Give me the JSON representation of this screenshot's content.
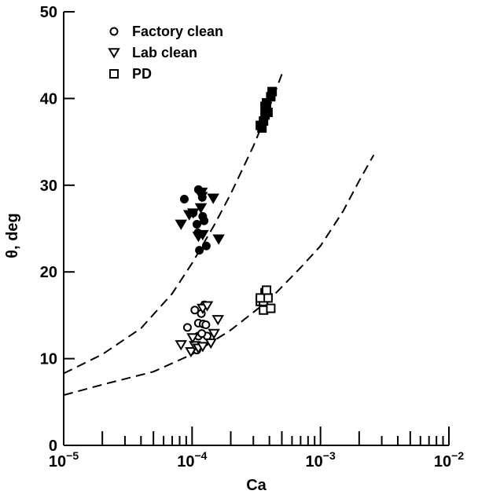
{
  "chart_data": {
    "type": "scatter",
    "xlabel": "Ca",
    "ylabel": "θ, deg",
    "xscale": "log",
    "xlim": [
      1e-05,
      0.01
    ],
    "ylim": [
      0,
      50
    ],
    "x_tick_labels": [
      {
        "base": "10",
        "exp": "−5",
        "value": 1e-05
      },
      {
        "base": "10",
        "exp": "−4",
        "value": 0.0001
      },
      {
        "base": "10",
        "exp": "−3",
        "value": 0.001
      },
      {
        "base": "10",
        "exp": "−2",
        "value": 0.01
      }
    ],
    "y_ticks": [
      0,
      10,
      20,
      30,
      40,
      50
    ],
    "legend_position": "top-left",
    "series": [
      {
        "name": "Factory clean",
        "marker": "open-circle",
        "filled_marker": "filled-circle",
        "points": [
          [
            9.2e-05,
            13.6
          ],
          [
            0.000105,
            15.6
          ],
          [
            0.000112,
            14.1
          ],
          [
            0.000118,
            15.2
          ],
          [
            0.000125,
            16.2
          ],
          [
            0.000122,
            14.0
          ],
          [
            0.000112,
            12.6
          ],
          [
            0.000128,
            13.9
          ],
          [
            0.000109,
            11.0
          ],
          [
            0.000131,
            12.6
          ],
          [
            0.000119,
            12.9
          ]
        ],
        "filled_points": [
          [
            8.7e-05,
            28.4
          ],
          [
            0.000112,
            29.5
          ],
          [
            0.000102,
            26.8
          ],
          [
            0.000121,
            26.4
          ],
          [
            0.000109,
            25.5
          ],
          [
            0.000124,
            25.9
          ],
          [
            0.000111,
            24.5
          ],
          [
            0.000129,
            23.0
          ],
          [
            0.000114,
            22.5
          ],
          [
            0.00012,
            28.6
          ]
        ]
      },
      {
        "name": "Lab clean",
        "marker": "open-triangle-down",
        "filled_marker": "filled-triangle-down",
        "points": [
          [
            8.2e-05,
            11.6
          ],
          [
            9.8e-05,
            10.8
          ],
          [
            0.000105,
            11.5
          ],
          [
            0.000112,
            11.2
          ],
          [
            0.000121,
            11.4
          ],
          [
            0.00014,
            11.8
          ],
          [
            0.000148,
            12.9
          ],
          [
            0.000159,
            14.5
          ],
          [
            0.000121,
            15.8
          ],
          [
            0.000131,
            16.1
          ],
          [
            0.000101,
            12.4
          ]
        ],
        "filled_points": [
          [
            8.2e-05,
            25.5
          ],
          [
            9.5e-05,
            26.6
          ],
          [
            0.000102,
            26.8
          ],
          [
            0.000117,
            27.4
          ],
          [
            0.000119,
            29.2
          ],
          [
            0.000146,
            28.5
          ],
          [
            0.000112,
            24.1
          ],
          [
            0.000121,
            24.3
          ],
          [
            0.000161,
            23.8
          ],
          [
            0.000119,
            28.7
          ]
        ]
      },
      {
        "name": "PD",
        "marker": "open-square",
        "filled_marker": "filled-square",
        "points": [
          [
            0.00034,
            16.6
          ],
          [
            0.00037,
            17.6
          ],
          [
            0.00036,
            16.6
          ],
          [
            0.00039,
            17.0
          ],
          [
            0.00036,
            15.6
          ],
          [
            0.00041,
            15.8
          ],
          [
            0.00034,
            17.0
          ],
          [
            0.00038,
            17.9
          ]
        ],
        "filled_points": [
          [
            0.00034,
            36.9
          ],
          [
            0.00036,
            37.4
          ],
          [
            0.00037,
            38.1
          ],
          [
            0.00039,
            38.4
          ],
          [
            0.00037,
            39.1
          ],
          [
            0.00041,
            40.2
          ],
          [
            0.00042,
            40.8
          ],
          [
            0.00035,
            36.6
          ],
          [
            0.00038,
            39.5
          ]
        ]
      }
    ],
    "fit_curves": [
      {
        "style": "dashed",
        "points": [
          [
            1e-05,
            8.3
          ],
          [
            2e-05,
            10.5
          ],
          [
            4e-05,
            13.5
          ],
          [
            7e-05,
            17.5
          ],
          [
            0.0001,
            21.0
          ],
          [
            0.00015,
            25.5
          ],
          [
            0.0002,
            29.0
          ],
          [
            0.0003,
            34.5
          ],
          [
            0.0004,
            39.0
          ],
          [
            0.0005,
            42.8
          ]
        ]
      },
      {
        "style": "dashed",
        "points": [
          [
            1e-05,
            5.8
          ],
          [
            2e-05,
            7.0
          ],
          [
            5e-05,
            8.5
          ],
          [
            0.0001,
            10.5
          ],
          [
            0.0002,
            13.3
          ],
          [
            0.0004,
            16.8
          ],
          [
            0.0007,
            20.5
          ],
          [
            0.001,
            23.0
          ],
          [
            0.0015,
            27.0
          ],
          [
            0.002,
            30.5
          ],
          [
            0.0026,
            33.5
          ]
        ]
      }
    ]
  }
}
